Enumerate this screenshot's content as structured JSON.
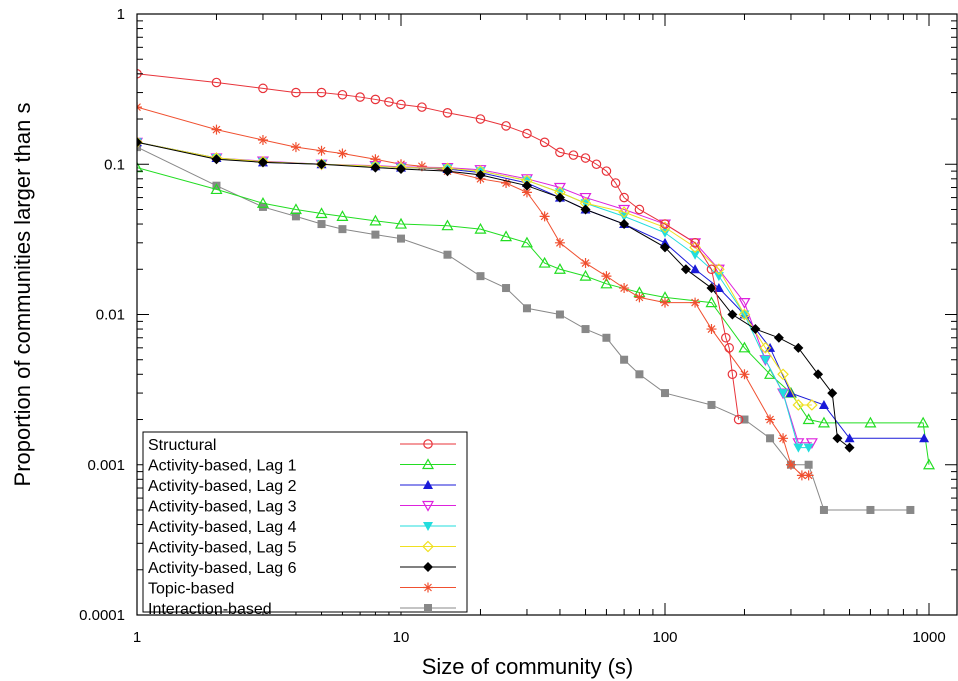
{
  "chart_data": {
    "type": "scatter",
    "title": "",
    "xlabel": "Size of community (s)",
    "ylabel": "Proportion of communities larger than s",
    "x_scale": "log",
    "y_scale": "log",
    "xlim": [
      1,
      1000
    ],
    "ylim": [
      0.0001,
      1
    ],
    "x_ticks": [
      {
        "value": 1,
        "label": "1"
      },
      {
        "value": 10,
        "label": "10"
      },
      {
        "value": 100,
        "label": "100"
      },
      {
        "value": 1000,
        "label": "1000"
      }
    ],
    "y_ticks": [
      {
        "value": 0.0001,
        "label": "0.0001"
      },
      {
        "value": 0.001,
        "label": "0.001"
      },
      {
        "value": 0.01,
        "label": "0.01"
      },
      {
        "value": 0.1,
        "label": "0.1"
      },
      {
        "value": 1,
        "label": "1"
      }
    ],
    "grid": false,
    "legend_position": "bottom-left",
    "series": [
      {
        "name": "Structural",
        "color": "#e8333a",
        "marker": "circle-open",
        "points": [
          [
            1,
            0.4
          ],
          [
            2,
            0.35
          ],
          [
            3,
            0.32
          ],
          [
            4,
            0.3
          ],
          [
            5,
            0.3
          ],
          [
            6,
            0.29
          ],
          [
            7,
            0.28
          ],
          [
            8,
            0.27
          ],
          [
            9,
            0.26
          ],
          [
            10,
            0.25
          ],
          [
            12,
            0.24
          ],
          [
            15,
            0.22
          ],
          [
            20,
            0.2
          ],
          [
            25,
            0.18
          ],
          [
            30,
            0.16
          ],
          [
            35,
            0.14
          ],
          [
            40,
            0.12
          ],
          [
            45,
            0.115
          ],
          [
            50,
            0.11
          ],
          [
            55,
            0.1
          ],
          [
            60,
            0.09
          ],
          [
            65,
            0.075
          ],
          [
            70,
            0.06
          ],
          [
            80,
            0.05
          ],
          [
            100,
            0.04
          ],
          [
            130,
            0.03
          ],
          [
            150,
            0.02
          ],
          [
            170,
            0.007
          ],
          [
            175,
            0.006
          ],
          [
            180,
            0.004
          ],
          [
            190,
            0.002
          ]
        ]
      },
      {
        "name": "Activity-based, Lag 1",
        "color": "#22dd22",
        "marker": "triangle-up-open",
        "points": [
          [
            1,
            0.095
          ],
          [
            2,
            0.068
          ],
          [
            3,
            0.055
          ],
          [
            4,
            0.05
          ],
          [
            5,
            0.047
          ],
          [
            6,
            0.045
          ],
          [
            8,
            0.042
          ],
          [
            10,
            0.04
          ],
          [
            15,
            0.039
          ],
          [
            20,
            0.037
          ],
          [
            25,
            0.033
          ],
          [
            30,
            0.03
          ],
          [
            35,
            0.022
          ],
          [
            40,
            0.02
          ],
          [
            50,
            0.018
          ],
          [
            60,
            0.016
          ],
          [
            80,
            0.014
          ],
          [
            100,
            0.013
          ],
          [
            150,
            0.012
          ],
          [
            200,
            0.006
          ],
          [
            250,
            0.004
          ],
          [
            300,
            0.003
          ],
          [
            350,
            0.002
          ],
          [
            400,
            0.0019
          ],
          [
            600,
            0.0019
          ],
          [
            950,
            0.0019
          ],
          [
            1000,
            0.001
          ]
        ]
      },
      {
        "name": "Activity-based, Lag 2",
        "color": "#1a1ad8",
        "marker": "triangle-up-filled",
        "points": [
          [
            1,
            0.14
          ],
          [
            2,
            0.11
          ],
          [
            3,
            0.103
          ],
          [
            5,
            0.1
          ],
          [
            8,
            0.097
          ],
          [
            10,
            0.095
          ],
          [
            15,
            0.093
          ],
          [
            20,
            0.088
          ],
          [
            30,
            0.075
          ],
          [
            40,
            0.06
          ],
          [
            50,
            0.05
          ],
          [
            70,
            0.04
          ],
          [
            100,
            0.03
          ],
          [
            130,
            0.02
          ],
          [
            160,
            0.015
          ],
          [
            200,
            0.01
          ],
          [
            250,
            0.006
          ],
          [
            300,
            0.003
          ],
          [
            400,
            0.0025
          ],
          [
            500,
            0.0015
          ],
          [
            958,
            0.0015
          ]
        ]
      },
      {
        "name": "Activity-based, Lag 3",
        "color": "#dd22dd",
        "marker": "triangle-down-open",
        "points": [
          [
            1,
            0.14
          ],
          [
            2,
            0.11
          ],
          [
            3,
            0.105
          ],
          [
            5,
            0.1
          ],
          [
            8,
            0.098
          ],
          [
            10,
            0.096
          ],
          [
            15,
            0.095
          ],
          [
            20,
            0.092
          ],
          [
            30,
            0.08
          ],
          [
            40,
            0.07
          ],
          [
            50,
            0.06
          ],
          [
            70,
            0.05
          ],
          [
            100,
            0.04
          ],
          [
            130,
            0.03
          ],
          [
            160,
            0.02
          ],
          [
            200,
            0.012
          ],
          [
            240,
            0.005
          ],
          [
            280,
            0.003
          ],
          [
            320,
            0.0014
          ],
          [
            360,
            0.0014
          ]
        ]
      },
      {
        "name": "Activity-based, Lag 4",
        "color": "#22dddd",
        "marker": "triangle-down-filled",
        "points": [
          [
            1,
            0.14
          ],
          [
            2,
            0.11
          ],
          [
            3,
            0.104
          ],
          [
            5,
            0.1
          ],
          [
            8,
            0.097
          ],
          [
            10,
            0.095
          ],
          [
            15,
            0.094
          ],
          [
            20,
            0.09
          ],
          [
            30,
            0.078
          ],
          [
            40,
            0.065
          ],
          [
            50,
            0.055
          ],
          [
            70,
            0.045
          ],
          [
            100,
            0.035
          ],
          [
            130,
            0.025
          ],
          [
            160,
            0.018
          ],
          [
            200,
            0.01
          ],
          [
            240,
            0.005
          ],
          [
            280,
            0.003
          ],
          [
            320,
            0.0013
          ],
          [
            350,
            0.0013
          ]
        ]
      },
      {
        "name": "Activity-based, Lag 5",
        "color": "#f0e020",
        "marker": "diamond-open",
        "points": [
          [
            1,
            0.14
          ],
          [
            2,
            0.11
          ],
          [
            3,
            0.104
          ],
          [
            5,
            0.1
          ],
          [
            8,
            0.097
          ],
          [
            10,
            0.095
          ],
          [
            15,
            0.094
          ],
          [
            20,
            0.09
          ],
          [
            30,
            0.078
          ],
          [
            40,
            0.065
          ],
          [
            50,
            0.055
          ],
          [
            70,
            0.048
          ],
          [
            100,
            0.038
          ],
          [
            130,
            0.028
          ],
          [
            160,
            0.02
          ],
          [
            200,
            0.01
          ],
          [
            240,
            0.006
          ],
          [
            280,
            0.004
          ],
          [
            320,
            0.0025
          ],
          [
            360,
            0.0025
          ]
        ]
      },
      {
        "name": "Activity-based, Lag 6",
        "color": "#000000",
        "marker": "diamond-filled",
        "points": [
          [
            1,
            0.14
          ],
          [
            2,
            0.108
          ],
          [
            3,
            0.103
          ],
          [
            5,
            0.1
          ],
          [
            8,
            0.095
          ],
          [
            10,
            0.093
          ],
          [
            15,
            0.09
          ],
          [
            20,
            0.085
          ],
          [
            30,
            0.072
          ],
          [
            40,
            0.06
          ],
          [
            50,
            0.05
          ],
          [
            70,
            0.04
          ],
          [
            100,
            0.028
          ],
          [
            120,
            0.02
          ],
          [
            150,
            0.015
          ],
          [
            180,
            0.01
          ],
          [
            220,
            0.008
          ],
          [
            270,
            0.007
          ],
          [
            320,
            0.006
          ],
          [
            380,
            0.004
          ],
          [
            430,
            0.003
          ],
          [
            450,
            0.0015
          ],
          [
            500,
            0.0013
          ]
        ]
      },
      {
        "name": "Topic-based",
        "color": "#f05030",
        "marker": "star",
        "points": [
          [
            1,
            0.24
          ],
          [
            2,
            0.17
          ],
          [
            3,
            0.145
          ],
          [
            4,
            0.13
          ],
          [
            5,
            0.123
          ],
          [
            6,
            0.118
          ],
          [
            8,
            0.108
          ],
          [
            10,
            0.1
          ],
          [
            12,
            0.097
          ],
          [
            15,
            0.09
          ],
          [
            20,
            0.08
          ],
          [
            25,
            0.075
          ],
          [
            30,
            0.065
          ],
          [
            35,
            0.045
          ],
          [
            40,
            0.03
          ],
          [
            50,
            0.022
          ],
          [
            60,
            0.018
          ],
          [
            70,
            0.015
          ],
          [
            80,
            0.013
          ],
          [
            100,
            0.012
          ],
          [
            130,
            0.012
          ],
          [
            150,
            0.008
          ],
          [
            200,
            0.004
          ],
          [
            250,
            0.002
          ],
          [
            280,
            0.0015
          ],
          [
            300,
            0.001
          ],
          [
            330,
            0.00085
          ],
          [
            350,
            0.00085
          ]
        ]
      },
      {
        "name": "Interaction-based",
        "color": "#888888",
        "marker": "square-filled",
        "points": [
          [
            1,
            0.13
          ],
          [
            2,
            0.072
          ],
          [
            3,
            0.052
          ],
          [
            4,
            0.045
          ],
          [
            5,
            0.04
          ],
          [
            6,
            0.037
          ],
          [
            8,
            0.034
          ],
          [
            10,
            0.032
          ],
          [
            15,
            0.025
          ],
          [
            20,
            0.018
          ],
          [
            25,
            0.015
          ],
          [
            30,
            0.011
          ],
          [
            40,
            0.01
          ],
          [
            50,
            0.008
          ],
          [
            60,
            0.007
          ],
          [
            70,
            0.005
          ],
          [
            80,
            0.004
          ],
          [
            100,
            0.003
          ],
          [
            150,
            0.0025
          ],
          [
            200,
            0.002
          ],
          [
            250,
            0.0015
          ],
          [
            300,
            0.001
          ],
          [
            350,
            0.001
          ],
          [
            400,
            0.0005
          ],
          [
            600,
            0.0005
          ],
          [
            850,
            0.0005
          ]
        ]
      }
    ]
  }
}
